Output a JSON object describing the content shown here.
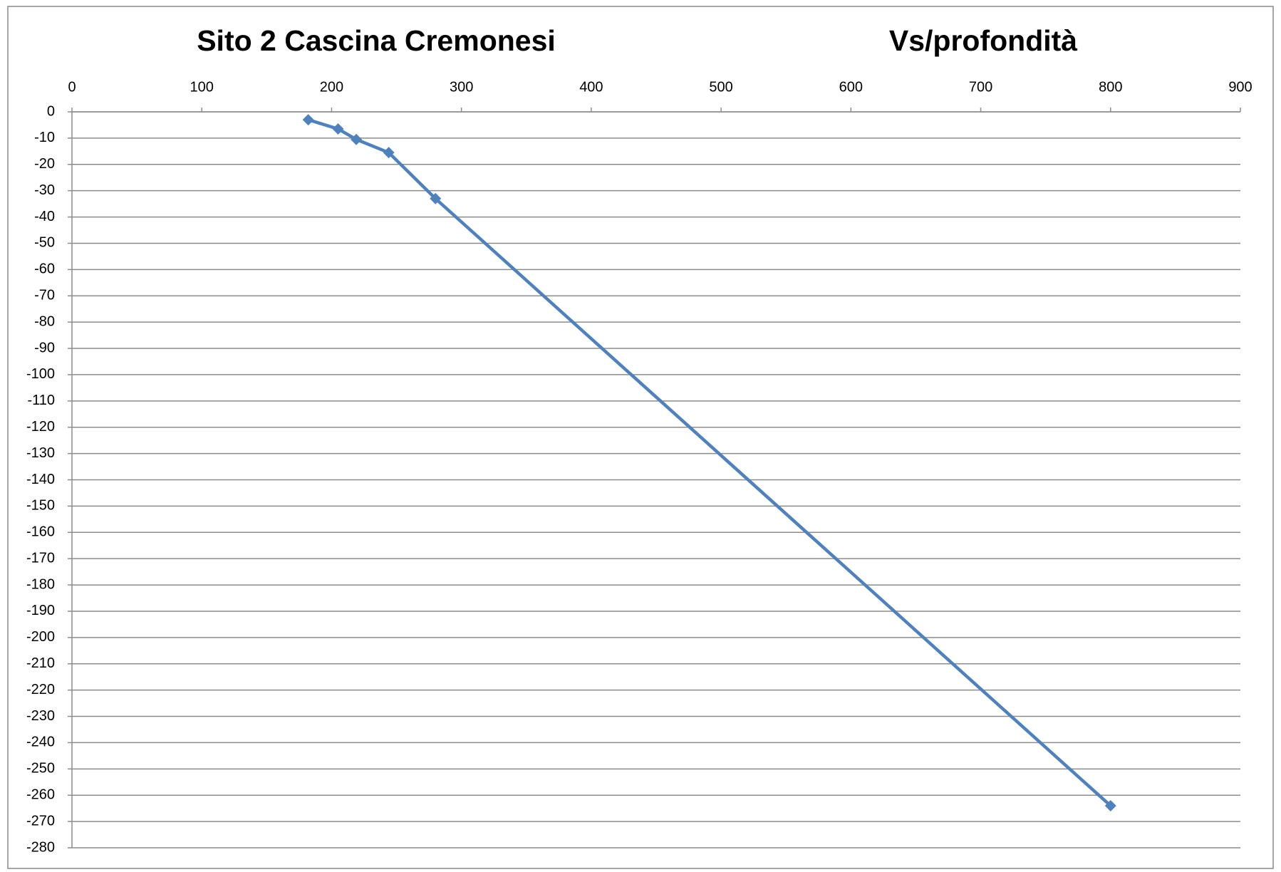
{
  "chart_data": {
    "type": "line",
    "title": "Sito 2 Cascina Cremonesi",
    "subtitle": "Vs/profondità",
    "x": [
      182,
      205,
      219,
      244,
      280,
      800
    ],
    "series": [
      {
        "color": "#4f81bd",
        "values": [
          -3,
          -6.5,
          -10.5,
          -15.5,
          -33,
          -264
        ]
      }
    ],
    "xlim": [
      0,
      900
    ],
    "xticks": [
      0,
      100,
      200,
      300,
      400,
      500,
      600,
      700,
      800,
      900
    ],
    "ylim": [
      -280,
      0
    ],
    "yticks": [
      0,
      -10,
      -20,
      -30,
      -40,
      -50,
      -60,
      -70,
      -80,
      -90,
      -100,
      -110,
      -120,
      -130,
      -140,
      -150,
      -160,
      -170,
      -180,
      -190,
      -200,
      -210,
      -220,
      -230,
      -240,
      -250,
      -260,
      -270,
      -280
    ],
    "grid": true,
    "x_axis_position": "top"
  }
}
